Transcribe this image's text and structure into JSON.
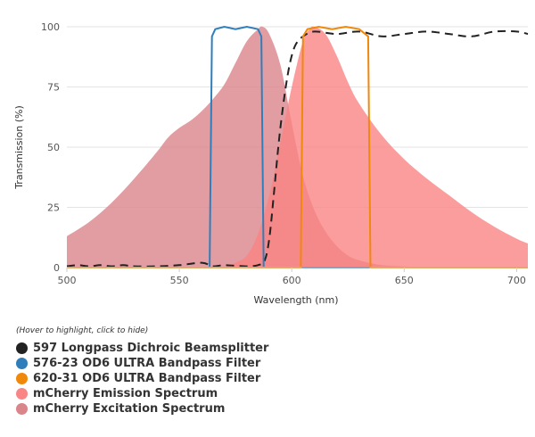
{
  "chart_data": {
    "type": "area",
    "xlabel": "Wavelength (nm)",
    "ylabel": "Transmission (%)",
    "xlim": [
      500,
      705
    ],
    "ylim": [
      0,
      100
    ],
    "xticks": [
      500,
      550,
      600,
      650,
      700
    ],
    "yticks": [
      0,
      25,
      50,
      75,
      100
    ],
    "grid": true,
    "legend_position": "bottom-left",
    "series": [
      {
        "name": "mCherry Excitation Spectrum",
        "style": "area",
        "color": "#d98589",
        "x": [
          500,
          510,
          520,
          530,
          540,
          545,
          550,
          555,
          560,
          565,
          570,
          575,
          580,
          585,
          587,
          590,
          595,
          600,
          605,
          610,
          615,
          620,
          625,
          630,
          640,
          650,
          660,
          670,
          705
        ],
        "y": [
          13,
          19,
          27,
          37,
          48,
          54,
          58,
          61,
          65,
          70,
          76,
          85,
          94,
          99,
          100,
          97,
          84,
          60,
          38,
          24,
          15,
          9,
          5,
          3,
          1,
          0.5,
          0,
          0,
          0
        ]
      },
      {
        "name": "mCherry Emission Spectrum",
        "style": "area",
        "color": "#fa8585",
        "x": [
          570,
          575,
          580,
          585,
          590,
          595,
          600,
          605,
          608,
          610,
          615,
          620,
          625,
          630,
          640,
          650,
          660,
          670,
          680,
          690,
          700,
          705
        ],
        "y": [
          0,
          2,
          5,
          14,
          30,
          52,
          75,
          94,
          99,
          100,
          97,
          88,
          77,
          68,
          55,
          45,
          37,
          30,
          23,
          17,
          12,
          10
        ]
      },
      {
        "name": "597 Longpass Dichroic Beamsplitter",
        "style": "dashed",
        "color": "#222222",
        "x": [
          500,
          505,
          510,
          515,
          520,
          525,
          530,
          540,
          550,
          560,
          565,
          570,
          580,
          585,
          588,
          590,
          592,
          594,
          596,
          598,
          600,
          602,
          605,
          610,
          620,
          630,
          640,
          650,
          660,
          670,
          680,
          690,
          700,
          705
        ],
        "y": [
          0.5,
          1,
          0.5,
          1,
          0.5,
          1,
          0.5,
          0.5,
          1,
          2,
          0.5,
          1,
          0.5,
          1,
          3,
          12,
          30,
          50,
          66,
          79,
          88,
          93,
          96,
          98,
          97,
          98,
          96,
          97,
          98,
          97,
          96,
          98,
          98,
          97
        ]
      },
      {
        "name": "576-23 OD6 ULTRA Bandpass Filter",
        "style": "line",
        "color": "#2f7ebc",
        "x": [
          500,
          563.5,
          564.5,
          566,
          570,
          575,
          580,
          585,
          586.5,
          587.5,
          705
        ],
        "y": [
          0,
          0,
          96,
          99,
          100,
          99,
          100,
          99,
          96,
          0,
          0
        ]
      },
      {
        "name": "620-31 OD6 ULTRA Bandpass Filter",
        "style": "line",
        "color": "#f0880a",
        "x": [
          500,
          604,
          605,
          607,
          612,
          618,
          624,
          630,
          634,
          635,
          705
        ],
        "y": [
          0,
          0,
          96,
          99,
          100,
          99,
          100,
          99,
          96,
          0,
          0
        ]
      }
    ]
  },
  "legend": {
    "hint": "(Hover to highlight, click to hide)",
    "items": [
      {
        "label": "597 Longpass Dichroic Beamsplitter",
        "color": "#222222"
      },
      {
        "label": "576-23 OD6 ULTRA Bandpass Filter",
        "color": "#2f7ebc"
      },
      {
        "label": "620-31 OD6 ULTRA Bandpass Filter",
        "color": "#f0880a"
      },
      {
        "label": "mCherry Emission Spectrum",
        "color": "#fa8585"
      },
      {
        "label": "mCherry Excitation Spectrum",
        "color": "#d98589"
      }
    ]
  }
}
